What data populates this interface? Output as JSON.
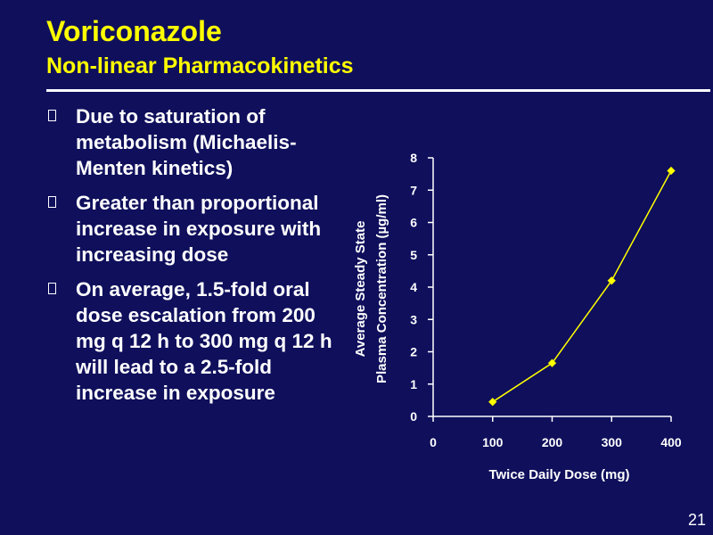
{
  "slide": {
    "title": "Voriconazole",
    "subtitle": "Non-linear Pharmacokinetics",
    "bullets": [
      "Due to saturation of metabolism (Michaelis-Menten kinetics)",
      "Greater than proportional increase in exposure with increasing dose",
      "On average, 1.5-fold oral dose escalation from 200 mg q 12 h to 300 mg q 12 h will lead to a 2.5-fold increase in exposure"
    ],
    "page_number": "21"
  },
  "colors": {
    "background": "#0f0f5c",
    "title": "#ffff00",
    "text": "#ffffff",
    "series": "#ffff00"
  },
  "chart_data": {
    "type": "line",
    "title": "",
    "xlabel": "Twice Daily Dose (mg)",
    "ylabel_line1": "Average Steady State",
    "ylabel_line2": "Plasma Concentration (µg/ml)",
    "x_ticks": [
      "0",
      "100",
      "200",
      "300",
      "400"
    ],
    "y_ticks": [
      "0",
      "1",
      "2",
      "3",
      "4",
      "5",
      "6",
      "7",
      "8"
    ],
    "xlim": [
      0,
      400
    ],
    "ylim": [
      0,
      8
    ],
    "grid": false,
    "legend": "none",
    "series": [
      {
        "x": [
          100,
          200,
          300,
          400
        ],
        "y": [
          0.45,
          1.65,
          4.2,
          7.6
        ]
      }
    ]
  }
}
